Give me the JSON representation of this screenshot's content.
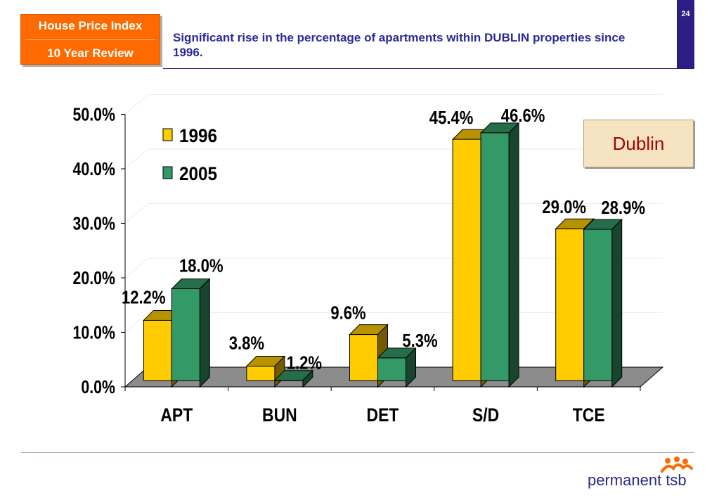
{
  "header": {
    "title_line1": "House Price Index",
    "title_line2": "10 Year Review",
    "headline": "Significant rise in the percentage of apartments within DUBLIN properties since 1996.",
    "page_number": "24"
  },
  "callout": {
    "label": "Dublin"
  },
  "logo": {
    "text": "permanent tsb"
  },
  "colors": {
    "series_1996": "#ffcc00",
    "series_2005": "#339966",
    "accent": "#ff6a00",
    "brand": "#2b1f83",
    "callout_text": "#a80000"
  },
  "chart_data": {
    "type": "bar",
    "categories": [
      "APT",
      "BUN",
      "DET",
      "S/D",
      "TCE"
    ],
    "series": [
      {
        "name": "1996",
        "values": [
          12.2,
          3.8,
          9.6,
          45.4,
          29.0
        ],
        "labels": [
          "12.2%",
          "3.8%",
          "9.6%",
          "45.4%",
          "29.0%"
        ]
      },
      {
        "name": "2005",
        "values": [
          18.0,
          1.2,
          5.3,
          46.6,
          28.9
        ],
        "labels": [
          "18.0%",
          "1.2%",
          "5.3%",
          "46.6%",
          "28.9%"
        ]
      }
    ],
    "y_ticks": [
      "0.0%",
      "10.0%",
      "20.0%",
      "30.0%",
      "40.0%",
      "50.0%"
    ],
    "ylim": [
      0,
      50
    ],
    "grid": true,
    "legend_position": "top-left",
    "style": "3d-clustered-bar"
  }
}
